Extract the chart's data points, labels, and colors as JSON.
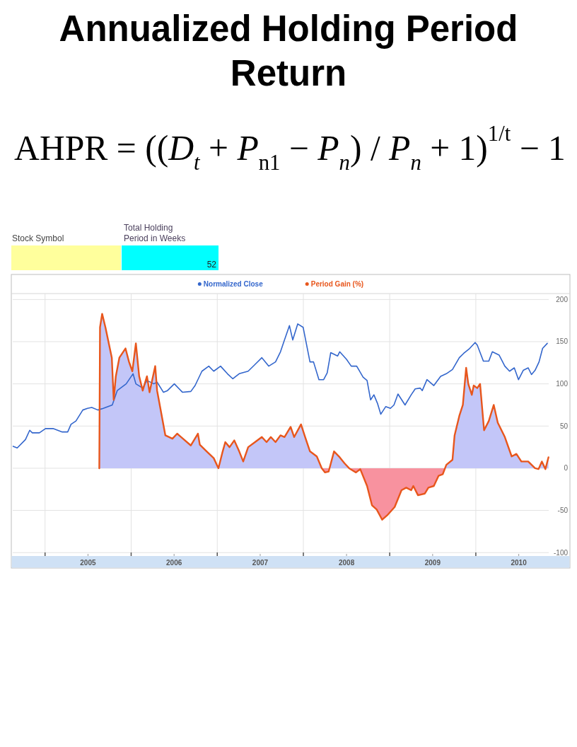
{
  "chart_data": {
    "type": "line",
    "title": "Annualized Holding Period Return",
    "subtitle": "AHPR = ((D$_{t}$ + P$_{n1}$ − P$_{n}$) / P$_{n}$ + 1)$^{1/t}$ − 1",
    "annotations": [
      "Stock Symbol",
      "Total Holding Period in Weeks",
      "52"
    ],
    "xlim": [
      "2004-08-17",
      "2010-11-06"
    ],
    "ylim": [
      -104,
      207
    ],
    "xticks": [
      {
        "value": "2005-01-01",
        "label": null
      },
      {
        "value": "2005-07-02",
        "label": "2005"
      },
      {
        "value": "2006-01-01",
        "label": null
      },
      {
        "value": "2006-07-02",
        "label": "2006"
      },
      {
        "value": "2007-01-01",
        "label": null
      },
      {
        "value": "2007-07-02",
        "label": "2007"
      },
      {
        "value": "2008-01-01",
        "label": null
      },
      {
        "value": "2008-07-02",
        "label": "2008"
      },
      {
        "value": "2009-01-01",
        "label": null
      },
      {
        "value": "2009-07-02",
        "label": "2009"
      },
      {
        "value": "2010-01-01",
        "label": null
      },
      {
        "value": "2010-07-02",
        "label": "2010"
      }
    ],
    "yticks": [
      -100,
      -50,
      0,
      50,
      100,
      150,
      200
    ],
    "grid": true,
    "legend": "top",
    "series": [
      {
        "name": "Normalized Close",
        "color": "#3366cc",
        "x": [
          "2004-08-19",
          "2004-09-05",
          "2004-10-10",
          "2004-10-28",
          "2004-11-08",
          "2004-12-08",
          "2005-01-03",
          "2005-02-04",
          "2005-03-15",
          "2005-04-07",
          "2005-04-21",
          "2005-05-12",
          "2005-06-10",
          "2005-06-30",
          "2005-07-18",
          "2005-08-13",
          "2005-09-05",
          "2005-10-13",
          "2005-11-03",
          "2005-12-11",
          "2006-01-09",
          "2006-01-21",
          "2006-02-19",
          "2006-03-09",
          "2006-04-07",
          "2006-04-21",
          "2006-05-18",
          "2006-06-04",
          "2006-07-03",
          "2006-08-07",
          "2006-09-11",
          "2006-09-29",
          "2006-10-28",
          "2006-11-26",
          "2006-12-17",
          "2007-01-15",
          "2007-02-13",
          "2007-03-08",
          "2007-04-04",
          "2007-05-12",
          "2007-06-10",
          "2007-07-09",
          "2007-08-07",
          "2007-09-05",
          "2007-09-26",
          "2007-10-13",
          "2007-11-03",
          "2007-11-17",
          "2007-12-08",
          "2007-12-31",
          "2008-01-29",
          "2008-02-13",
          "2008-03-07",
          "2008-03-27",
          "2008-04-11",
          "2008-04-26",
          "2008-05-25",
          "2008-06-03",
          "2008-07-02",
          "2008-07-22",
          "2008-08-14",
          "2008-09-10",
          "2008-09-27",
          "2008-10-12",
          "2008-10-26",
          "2008-11-10",
          "2008-11-24",
          "2008-12-15",
          "2009-01-04",
          "2009-01-19",
          "2009-02-05",
          "2009-03-07",
          "2009-04-02",
          "2009-04-19",
          "2009-05-10",
          "2009-05-19",
          "2009-06-08",
          "2009-07-07",
          "2009-08-05",
          "2009-08-29",
          "2009-09-24",
          "2009-10-23",
          "2009-11-10",
          "2009-12-06",
          "2009-12-29",
          "2010-01-07",
          "2010-02-02",
          "2010-02-25",
          "2010-03-12",
          "2010-04-10",
          "2010-05-04",
          "2010-05-24",
          "2010-06-13",
          "2010-07-01",
          "2010-07-21",
          "2010-08-11",
          "2010-08-25",
          "2010-09-09",
          "2010-09-26",
          "2010-10-11",
          "2010-10-31"
        ],
        "values": [
          26,
          24,
          34,
          45,
          42,
          42,
          47,
          47,
          43,
          43,
          52,
          56,
          69,
          71,
          72,
          69,
          71,
          75,
          92,
          100,
          112,
          100,
          95,
          104,
          100,
          102,
          90,
          92,
          100,
          90,
          91,
          98,
          115,
          121,
          115,
          121,
          112,
          106,
          112,
          115,
          123,
          131,
          121,
          126,
          138,
          152,
          169,
          152,
          171,
          167,
          126,
          126,
          105,
          105,
          113,
          137,
          133,
          138,
          129,
          121,
          121,
          108,
          104,
          81,
          87,
          77,
          64,
          73,
          71,
          75,
          88,
          75,
          87,
          94,
          95,
          92,
          105,
          98,
          109,
          112,
          117,
          131,
          136,
          142,
          149,
          146,
          127,
          127,
          138,
          134,
          121,
          115,
          119,
          105,
          116,
          119,
          111,
          116,
          126,
          142,
          148
        ]
      },
      {
        "name": "Period Gain (%)",
        "type": "area",
        "color": "#e8561c",
        "colors": [
          "#c3c6f8",
          "#c3c6f8",
          "#c3c6f8",
          "#c3c6f8",
          "#c3c6f8",
          "#c3c6f8",
          "#c3c6f8",
          "#c3c6f8",
          "#c3c6f8",
          "#c3c6f8",
          "#c3c6f8",
          "#c3c6f8",
          "#c3c6f8",
          "#c3c6f8",
          "#c3c6f8",
          "#c3c6f8",
          "#c3c6f8",
          "#c3c6f8",
          "#c3c6f8",
          "#c3c6f8",
          "#c3c6f8",
          "#c3c6f8",
          "#c3c6f8",
          "#c3c6f8",
          "#c3c6f8",
          "#c3c6f8",
          "#c3c6f8",
          "#c3c6f8",
          "#c3c6f8",
          "#c3c6f8",
          "#c3c6f8",
          "#c3c6f8",
          "#c3c6f8",
          "#c3c6f8",
          "#c3c6f8",
          "#c3c6f8",
          "#c3c6f8",
          "#c3c6f8",
          "#c3c6f8",
          "#c3c6f8",
          "#c3c6f8",
          "#c3c6f8",
          "#c3c6f8",
          "#c3c6f8",
          "#c3c6f8",
          "#c3c6f8",
          "#c3c6f8",
          "#c3c6f8",
          "#c3c6f8",
          "#f8929f",
          "#f8929f",
          "#c3c6f8",
          "#c3c6f8",
          "#c3c6f8",
          "#c3c6f8",
          "#f8929f",
          "#f8929f",
          "#f8929f",
          "#f8929f",
          "#f8929f",
          "#f8929f",
          "#f8929f",
          "#f8929f",
          "#f8929f",
          "#f8929f",
          "#f8929f",
          "#f8929f",
          "#f8929f",
          "#f8929f",
          "#f8929f",
          "#f8929f",
          "#f8929f",
          "#f8929f",
          "#c3c6f8",
          "#c3c6f8",
          "#c3c6f8",
          "#c3c6f8",
          "#c3c6f8",
          "#c3c6f8",
          "#c3c6f8",
          "#c3c6f8",
          "#c3c6f8",
          "#c3c6f8",
          "#c3c6f8",
          "#c3c6f8",
          "#c3c6f8",
          "#c3c6f8",
          "#c3c6f8",
          "#c3c6f8",
          "#c3c6f8",
          "#c3c6f8",
          "#c3c6f8",
          "#c3c6f8",
          "#c3c6f8",
          "#f8929f",
          "#c3c6f8",
          "#f8929f",
          "#c3c6f8"
        ],
        "x": [
          "2005-08-19",
          "2005-08-22",
          "2005-08-31",
          "2005-09-14",
          "2005-10-11",
          "2005-10-19",
          "2005-10-28",
          "2005-11-12",
          "2005-12-08",
          "2005-12-23",
          "2006-01-06",
          "2006-01-21",
          "2006-02-04",
          "2006-02-19",
          "2006-03-09",
          "2006-03-20",
          "2006-04-13",
          "2006-04-21",
          "2006-05-26",
          "2006-06-25",
          "2006-07-15",
          "2006-08-13",
          "2006-09-11",
          "2006-10-11",
          "2006-10-19",
          "2006-11-17",
          "2006-12-17",
          "2007-01-06",
          "2007-01-24",
          "2007-02-04",
          "2007-02-22",
          "2007-03-14",
          "2007-04-04",
          "2007-04-21",
          "2007-05-12",
          "2007-06-10",
          "2007-07-09",
          "2007-07-29",
          "2007-08-16",
          "2007-09-05",
          "2007-09-26",
          "2007-10-13",
          "2007-11-08",
          "2007-11-23",
          "2007-12-22",
          "2008-01-06",
          "2008-01-29",
          "2008-02-27",
          "2008-03-19",
          "2008-04-02",
          "2008-04-17",
          "2008-05-10",
          "2008-06-03",
          "2008-06-23",
          "2008-07-13",
          "2008-08-11",
          "2008-08-29",
          "2008-09-27",
          "2008-10-18",
          "2008-11-07",
          "2008-11-30",
          "2008-12-24",
          "2009-01-22",
          "2009-02-20",
          "2009-03-12",
          "2009-04-02",
          "2009-04-11",
          "2009-05-01",
          "2009-05-30",
          "2009-06-14",
          "2009-07-07",
          "2009-07-27",
          "2009-08-14",
          "2009-08-29",
          "2009-09-24",
          "2009-10-03",
          "2009-10-23",
          "2009-11-07",
          "2009-11-21",
          "2009-11-30",
          "2009-12-15",
          "2009-12-23",
          "2010-01-07",
          "2010-01-19",
          "2010-02-05",
          "2010-02-25",
          "2010-03-18",
          "2010-04-04",
          "2010-05-04",
          "2010-06-02",
          "2010-06-22",
          "2010-07-13",
          "2010-08-11",
          "2010-09-09",
          "2010-09-24",
          "2010-10-08",
          "2010-10-23",
          "2010-11-05"
        ],
        "values": [
          0,
          167,
          183,
          167,
          131,
          81,
          109,
          131,
          142,
          126,
          115,
          148,
          109,
          92,
          109,
          90,
          121,
          92,
          39,
          35,
          41,
          34,
          27,
          41,
          28,
          20,
          12,
          0,
          20,
          31,
          25,
          33,
          20,
          8,
          25,
          31,
          37,
          31,
          37,
          31,
          39,
          37,
          49,
          37,
          52,
          39,
          20,
          14,
          0,
          -5,
          -4,
          20,
          13,
          6,
          0,
          -5,
          -1,
          -21,
          -44,
          -49,
          -61,
          -55,
          -46,
          -26,
          -23,
          -26,
          -21,
          -32,
          -30,
          -23,
          -21,
          -9,
          -7,
          4,
          10,
          39,
          62,
          75,
          119,
          100,
          87,
          98,
          95,
          100,
          45,
          56,
          75,
          54,
          37,
          14,
          17,
          8,
          8,
          0,
          -1,
          8,
          -1,
          13
        ]
      }
    ]
  }
}
